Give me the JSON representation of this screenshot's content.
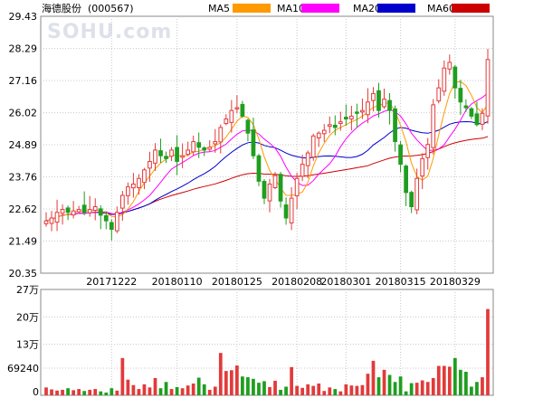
{
  "chart_data": {
    "type": "candlestick",
    "stock_name": "海德股份",
    "stock_code": "(000567)",
    "watermark": "SOHU.com",
    "legend": [
      {
        "name": "MA5",
        "color": "#ff9900"
      },
      {
        "name": "MA10",
        "color": "#ff00ff"
      },
      {
        "name": "MA20",
        "color": "#0000cc"
      },
      {
        "name": "MA60",
        "color": "#cc0000"
      }
    ],
    "colors": {
      "up": "#e23a3a",
      "down": "#1f9e1f",
      "grid": "#c8c8c8",
      "axis": "#888888"
    },
    "price_axis": {
      "min": 20.35,
      "max": 29.43,
      "ticks": [
        "29.43",
        "28.29",
        "27.16",
        "26.02",
        "24.89",
        "23.76",
        "22.62",
        "21.49",
        "20.35"
      ]
    },
    "volume_axis": {
      "max": 270000,
      "ticks": [
        {
          "label": "27万",
          "value": 270000
        },
        {
          "label": "20万",
          "value": 200000
        },
        {
          "label": "13万",
          "value": 130000
        },
        {
          "label": "69240",
          "value": 69240
        },
        {
          "label": "0",
          "value": 0
        }
      ]
    },
    "date_labels": [
      {
        "label": "20171222",
        "index": 12
      },
      {
        "label": "20180110",
        "index": 24
      },
      {
        "label": "20180125",
        "index": 35
      },
      {
        "label": "20180208",
        "index": 46
      },
      {
        "label": "20180301",
        "index": 55
      },
      {
        "label": "20180315",
        "index": 65
      },
      {
        "label": "20180329",
        "index": 75
      }
    ],
    "close": [
      22.2,
      22.3,
      22.5,
      22.6,
      22.5,
      22.55,
      22.6,
      22.5,
      22.6,
      22.7,
      22.4,
      22.2,
      21.9,
      22.5,
      23.1,
      23.4,
      23.5,
      23.7,
      24.0,
      24.3,
      24.7,
      24.5,
      24.4,
      24.7,
      24.3,
      24.5,
      24.7,
      25.0,
      24.8,
      24.7,
      24.8,
      25.0,
      25.5,
      25.8,
      26.1,
      26.2,
      25.9,
      25.3,
      24.5,
      23.6,
      23.0,
      23.5,
      23.8,
      22.9,
      22.3,
      23.0,
      23.7,
      24.2,
      24.6,
      25.2,
      25.3,
      25.4,
      25.6,
      25.5,
      25.7,
      25.8,
      25.9,
      26.0,
      26.1,
      26.4,
      26.7,
      26.1,
      26.5,
      26.1,
      25.0,
      24.2,
      23.2,
      22.7,
      23.7,
      24.4,
      24.9,
      26.3,
      26.9,
      27.6,
      27.8,
      26.9,
      26.4,
      26.2,
      25.9,
      25.6,
      26.0,
      27.9
    ],
    "volume": [
      20000,
      15000,
      12000,
      14000,
      18000,
      13000,
      16000,
      11000,
      14000,
      16000,
      10000,
      7000,
      18000,
      12000,
      95000,
      40000,
      26000,
      16000,
      28000,
      20000,
      44000,
      18000,
      34000,
      16000,
      21000,
      18000,
      25000,
      30000,
      45000,
      28000,
      14000,
      22000,
      108000,
      62000,
      64000,
      76000,
      48000,
      46000,
      42000,
      32000,
      36000,
      21000,
      37000,
      14000,
      22000,
      72000,
      24000,
      19000,
      28000,
      24000,
      30000,
      11000,
      20000,
      16000,
      10000,
      28000,
      25000,
      24000,
      26000,
      55000,
      88000,
      46000,
      65000,
      52000,
      34000,
      48000,
      10000,
      31000,
      32000,
      38000,
      34000,
      44000,
      75000,
      75000,
      73000,
      95000,
      65000,
      60000,
      22000,
      34000,
      46000,
      220000
    ]
  }
}
